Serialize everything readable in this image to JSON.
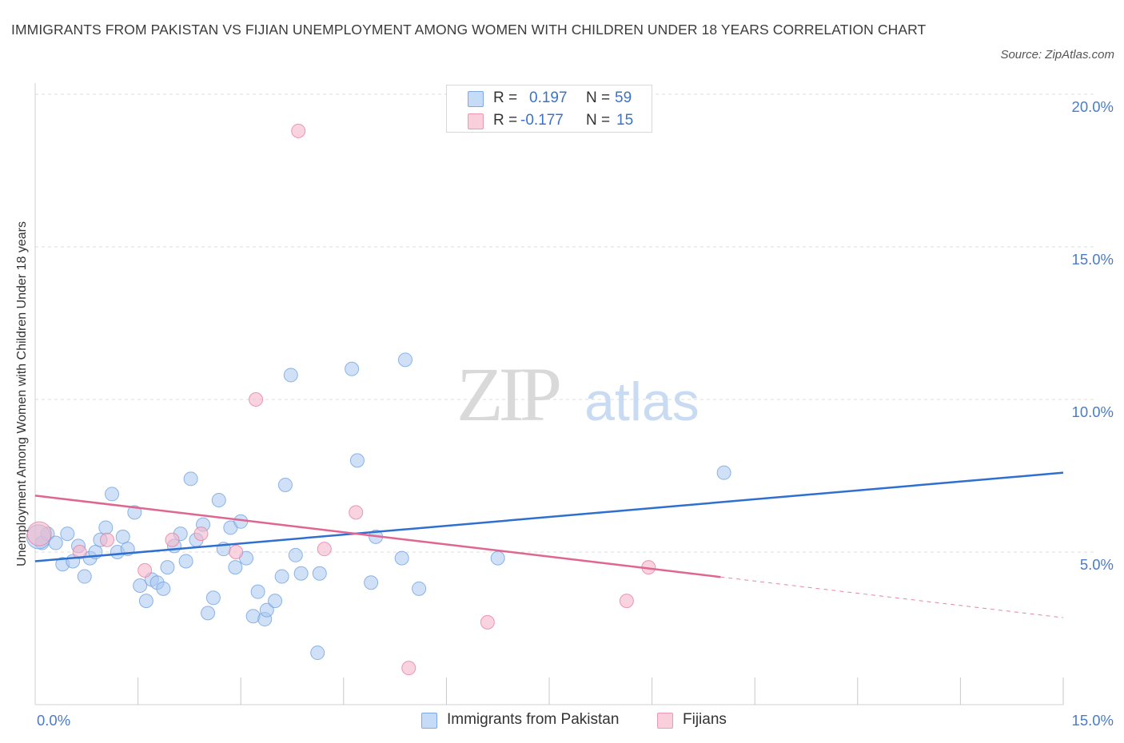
{
  "title": "IMMIGRANTS FROM PAKISTAN VS FIJIAN UNEMPLOYMENT AMONG WOMEN WITH CHILDREN UNDER 18 YEARS CORRELATION CHART",
  "source": "Source: ZipAtlas.com",
  "watermark": {
    "zip": "ZIP",
    "atlas": "atlas"
  },
  "legend": {
    "rows": [
      {
        "r_label": "R =",
        "r_value": "0.197",
        "n_label": "N =",
        "n_value": "59",
        "color": "#aac8f0"
      },
      {
        "r_label": "R =",
        "r_value": "-0.177",
        "n_label": "N =",
        "n_value": "15",
        "color": "#f5b8cb"
      }
    ]
  },
  "bottom_legend": [
    {
      "label": "Immigrants from Pakistan",
      "color": "#aac8f0"
    },
    {
      "label": "Fijians",
      "color": "#f5b8cb"
    }
  ],
  "chart_data": {
    "type": "scatter",
    "ylabel": "Unemployment Among Women with Children Under 18 years",
    "xlim": [
      0,
      15
    ],
    "ylim": [
      0,
      20
    ],
    "x_tick_labels": [
      {
        "value": 0,
        "label": "0.0%"
      },
      {
        "value": 15,
        "label": "15.0%"
      }
    ],
    "y_tick_labels": [
      {
        "value": 5,
        "label": "5.0%"
      },
      {
        "value": 10,
        "label": "10.0%"
      },
      {
        "value": 15,
        "label": "15.0%"
      },
      {
        "value": 20,
        "label": "20.0%"
      }
    ],
    "grid": "horizontal-dashed",
    "series": [
      {
        "name": "Immigrants from Pakistan",
        "color": "#6b9de0",
        "fill": "#aac8f0",
        "trend": {
          "x": [
            0,
            15
          ],
          "y": [
            4.7,
            7.6
          ]
        },
        "points": [
          {
            "x": 0.1,
            "y": 5.3
          },
          {
            "x": 0.18,
            "y": 5.6
          },
          {
            "x": 0.3,
            "y": 5.3
          },
          {
            "x": 0.4,
            "y": 4.6
          },
          {
            "x": 0.47,
            "y": 5.6
          },
          {
            "x": 0.55,
            "y": 4.7
          },
          {
            "x": 0.63,
            "y": 5.2
          },
          {
            "x": 0.72,
            "y": 4.2
          },
          {
            "x": 0.8,
            "y": 4.8
          },
          {
            "x": 0.88,
            "y": 5.0
          },
          {
            "x": 0.95,
            "y": 5.4
          },
          {
            "x": 1.03,
            "y": 5.8
          },
          {
            "x": 1.12,
            "y": 6.9
          },
          {
            "x": 1.2,
            "y": 5.0
          },
          {
            "x": 1.28,
            "y": 5.5
          },
          {
            "x": 1.35,
            "y": 5.1
          },
          {
            "x": 1.45,
            "y": 6.3
          },
          {
            "x": 1.53,
            "y": 3.9
          },
          {
            "x": 1.62,
            "y": 3.4
          },
          {
            "x": 1.7,
            "y": 4.1
          },
          {
            "x": 1.78,
            "y": 4.0
          },
          {
            "x": 1.87,
            "y": 3.8
          },
          {
            "x": 1.93,
            "y": 4.5
          },
          {
            "x": 2.03,
            "y": 5.2
          },
          {
            "x": 2.12,
            "y": 5.6
          },
          {
            "x": 2.2,
            "y": 4.7
          },
          {
            "x": 2.27,
            "y": 7.4
          },
          {
            "x": 2.35,
            "y": 5.4
          },
          {
            "x": 2.45,
            "y": 5.9
          },
          {
            "x": 2.52,
            "y": 3.0
          },
          {
            "x": 2.6,
            "y": 3.5
          },
          {
            "x": 2.68,
            "y": 6.7
          },
          {
            "x": 2.75,
            "y": 5.1
          },
          {
            "x": 2.85,
            "y": 5.8
          },
          {
            "x": 2.92,
            "y": 4.5
          },
          {
            "x": 3.0,
            "y": 6.0
          },
          {
            "x": 3.08,
            "y": 4.8
          },
          {
            "x": 3.18,
            "y": 2.9
          },
          {
            "x": 3.25,
            "y": 3.7
          },
          {
            "x": 3.35,
            "y": 2.8
          },
          {
            "x": 3.38,
            "y": 3.1
          },
          {
            "x": 3.5,
            "y": 3.4
          },
          {
            "x": 3.6,
            "y": 4.2
          },
          {
            "x": 3.65,
            "y": 7.2
          },
          {
            "x": 3.73,
            "y": 10.8
          },
          {
            "x": 3.8,
            "y": 4.9
          },
          {
            "x": 3.88,
            "y": 4.3
          },
          {
            "x": 4.12,
            "y": 1.7
          },
          {
            "x": 4.15,
            "y": 4.3
          },
          {
            "x": 4.62,
            "y": 11.0
          },
          {
            "x": 4.7,
            "y": 8.0
          },
          {
            "x": 4.9,
            "y": 4.0
          },
          {
            "x": 4.97,
            "y": 5.5
          },
          {
            "x": 5.35,
            "y": 4.8
          },
          {
            "x": 5.4,
            "y": 11.3
          },
          {
            "x": 5.6,
            "y": 3.8
          },
          {
            "x": 6.75,
            "y": 4.8
          },
          {
            "x": 10.05,
            "y": 7.6
          },
          {
            "x": 0.05,
            "y": 5.5
          }
        ]
      },
      {
        "name": "Fijians",
        "color": "#e8789c",
        "fill": "#f5b8cb",
        "trend": {
          "x": [
            0,
            15
          ],
          "y": [
            6.85,
            2.85
          ],
          "solid_until_x": 10
        },
        "points": [
          {
            "x": 0.06,
            "y": 5.6
          },
          {
            "x": 0.65,
            "y": 5.0
          },
          {
            "x": 1.05,
            "y": 5.4
          },
          {
            "x": 1.6,
            "y": 4.4
          },
          {
            "x": 2.0,
            "y": 5.4
          },
          {
            "x": 2.42,
            "y": 5.6
          },
          {
            "x": 2.93,
            "y": 5.0
          },
          {
            "x": 3.22,
            "y": 10.0
          },
          {
            "x": 3.84,
            "y": 18.8
          },
          {
            "x": 4.22,
            "y": 5.1
          },
          {
            "x": 4.68,
            "y": 6.3
          },
          {
            "x": 5.45,
            "y": 1.2
          },
          {
            "x": 6.6,
            "y": 2.7
          },
          {
            "x": 8.63,
            "y": 3.4
          },
          {
            "x": 8.95,
            "y": 4.5
          }
        ]
      }
    ]
  }
}
